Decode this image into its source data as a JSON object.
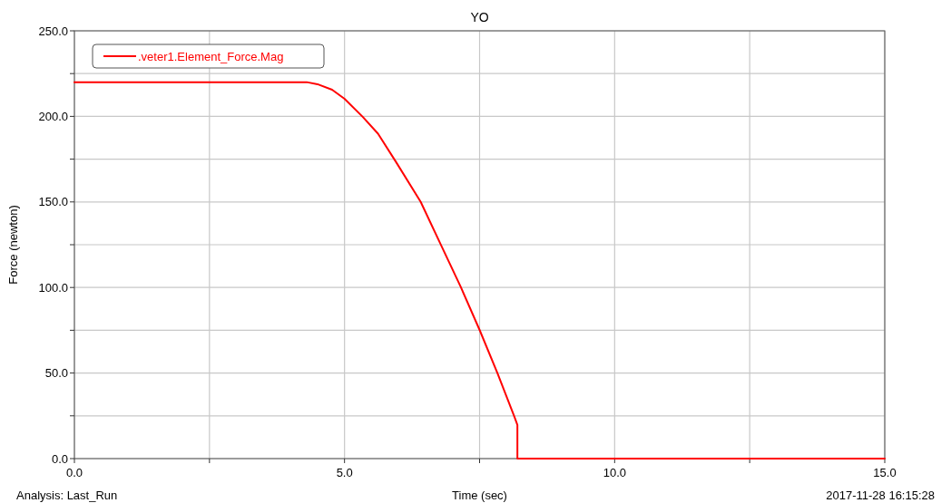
{
  "chart_data": {
    "type": "line",
    "title": "YO",
    "xlabel": "Time (sec)",
    "ylabel": "Force (newton)",
    "annotations": [
      "Analysis:  Last_Run",
      "2017-11-28 16:15:28"
    ],
    "x": [
      0,
      4.3,
      4.5,
      4.77,
      5.0,
      5.34,
      5.62,
      5.96,
      6.41,
      6.78,
      7.15,
      7.5,
      7.83,
      8.14,
      8.2,
      8.2,
      15
    ],
    "series": [
      {
        "name": ".veter1.Element_Force.Mag",
        "color": "#ff0000",
        "values": [
          220,
          220,
          218.8,
          215.6,
          210.3,
          199.6,
          189.9,
          173.0,
          150.0,
          125.2,
          100.4,
          75.2,
          50.0,
          24.8,
          19.7,
          0,
          0
        ]
      }
    ],
    "xlim": [
      0,
      15
    ],
    "xticks": [
      {
        "value": 0,
        "label": "0.0"
      },
      {
        "value": 2.5,
        "label": null
      },
      {
        "value": 5,
        "label": "5.0"
      },
      {
        "value": 7.5,
        "label": null
      },
      {
        "value": 10,
        "label": "10.0"
      },
      {
        "value": 12.5,
        "label": null
      },
      {
        "value": 15,
        "label": "15.0"
      }
    ],
    "ylim": [
      0,
      250
    ],
    "yticks": [
      {
        "value": 0,
        "label": "0.0"
      },
      {
        "value": 25,
        "label": null
      },
      {
        "value": 50,
        "label": "50.0"
      },
      {
        "value": 75,
        "label": null
      },
      {
        "value": 100,
        "label": "100.0"
      },
      {
        "value": 125,
        "label": null
      },
      {
        "value": 150,
        "label": "150.0"
      },
      {
        "value": 175,
        "label": null
      },
      {
        "value": 200,
        "label": "200.0"
      },
      {
        "value": 225,
        "label": null
      },
      {
        "value": 250,
        "label": "250.0"
      }
    ],
    "grid": true,
    "legend": "top left",
    "marker": "none",
    "line_style": "solid"
  }
}
